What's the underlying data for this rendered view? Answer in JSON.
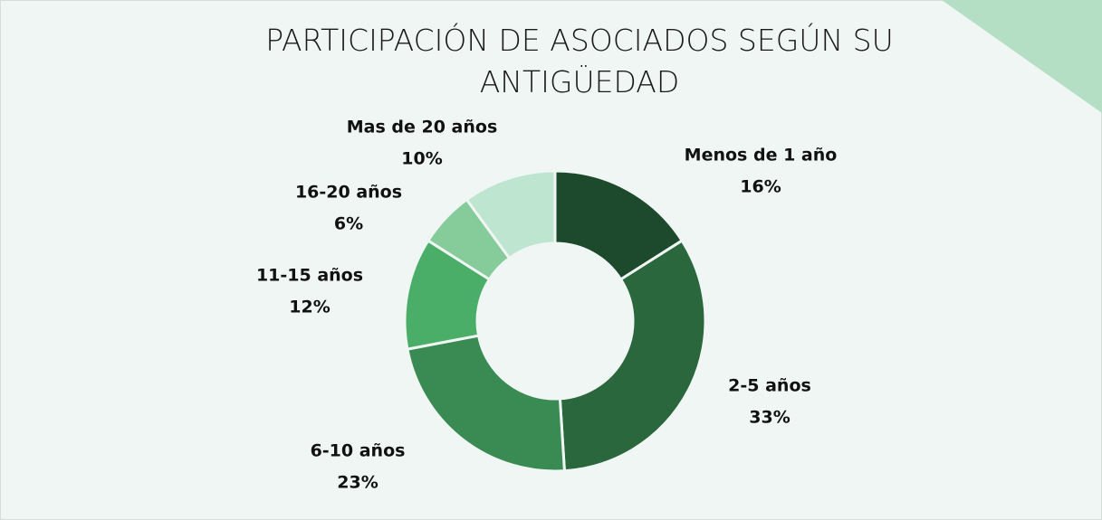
{
  "chart_data": {
    "type": "donut",
    "title": "PARTICIPACIÓN DE ASOCIADOS SEGÚN SU ANTIGÜEDAD",
    "categories": [
      "Menos de 1 año",
      "2-5 años",
      "6-10 años",
      "11-15 años",
      "16-20 años",
      "Mas de 20 años"
    ],
    "values": [
      16,
      33,
      23,
      12,
      6,
      10
    ],
    "value_labels": [
      "16%",
      "33%",
      "23%",
      "12%",
      "6%",
      "10%"
    ],
    "colors": [
      "#1d4a2c",
      "#2a673c",
      "#3a8a54",
      "#4aae69",
      "#86cc9b",
      "#bee5cf"
    ]
  }
}
